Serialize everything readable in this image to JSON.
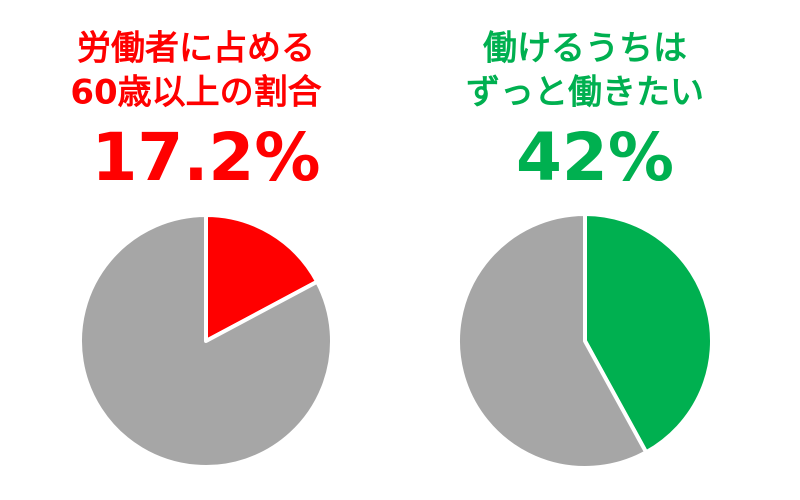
{
  "chart_data": [
    {
      "type": "pie",
      "title": [
        "労働者に占める",
        "60歳以上の割合"
      ],
      "values": [
        17.2,
        82.8
      ],
      "value_labels": [
        "17.2%",
        null
      ],
      "colors": [
        "#ff0000",
        "#a6a6a6"
      ],
      "title_color": "#ff0000"
    },
    {
      "type": "pie",
      "title": [
        "働けるうちは",
        "ずっと働きたい"
      ],
      "values": [
        42,
        58
      ],
      "value_labels": [
        "42%",
        null
      ],
      "colors": [
        "#00b050",
        "#a6a6a6"
      ],
      "title_color": "#00b050"
    }
  ]
}
